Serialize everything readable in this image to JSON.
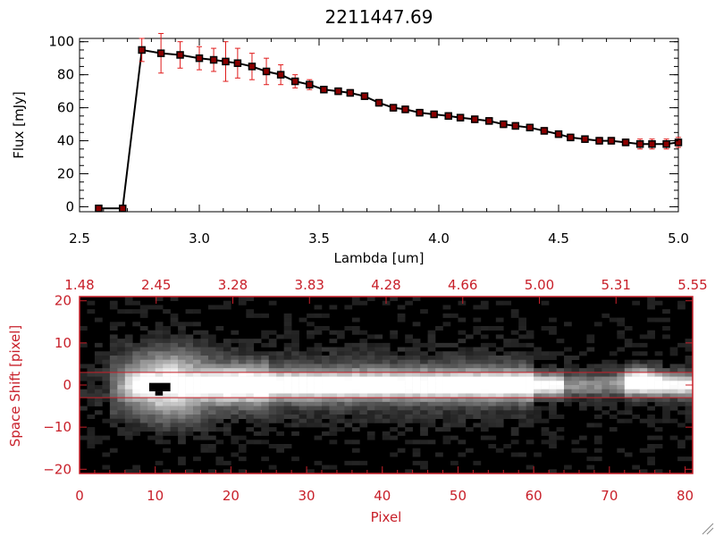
{
  "colors": {
    "line": "#000000",
    "errorbar": "#e01a1a",
    "marker": "#000000",
    "marker_fill": "#8b0000",
    "bottom_axes": "#c8202a"
  },
  "chart_data": [
    {
      "type": "line",
      "title": "2211447.69",
      "xlabel": "Lambda [um]",
      "ylabel": "Flux [mJy]",
      "xlim": [
        2.5,
        5.0
      ],
      "ylim": [
        -3,
        102
      ],
      "x_ticks": [
        2.5,
        3.0,
        3.5,
        4.0,
        4.5,
        5.0
      ],
      "x_tick_labels": [
        "2.5",
        "3.0",
        "3.5",
        "4.0",
        "4.5",
        "5.0"
      ],
      "y_ticks": [
        0,
        20,
        40,
        60,
        80,
        100
      ],
      "y_tick_labels": [
        "0",
        "20",
        "40",
        "60",
        "80",
        "100"
      ],
      "series": [
        {
          "x": [
            2.58,
            2.68,
            2.76,
            2.84,
            2.92,
            3.0,
            3.06,
            3.11,
            3.16,
            3.22,
            3.28,
            3.34,
            3.4,
            3.46,
            3.52,
            3.58,
            3.63,
            3.69,
            3.75,
            3.81,
            3.86,
            3.92,
            3.98,
            4.04,
            4.09,
            4.15,
            4.21,
            4.27,
            4.32,
            4.38,
            4.44,
            4.5,
            4.55,
            4.61,
            4.67,
            4.72,
            4.78,
            4.84,
            4.89,
            4.95,
            5.0
          ],
          "y": [
            -1,
            -1,
            95,
            93,
            92,
            90,
            89,
            88,
            87,
            85,
            82,
            80,
            76,
            74,
            71,
            70,
            69,
            67,
            63,
            60,
            59,
            57,
            56,
            55,
            54,
            53,
            52,
            50,
            49,
            48,
            46,
            44,
            42,
            41,
            40,
            40,
            39,
            38,
            38,
            38,
            39
          ],
          "yerr": [
            1,
            1,
            7,
            12,
            8,
            7,
            7,
            12,
            9,
            8,
            8,
            6,
            4,
            3,
            2,
            2,
            2,
            2,
            2,
            2,
            2,
            2,
            2,
            2,
            2,
            2,
            2,
            2,
            2,
            2,
            2,
            2,
            2,
            2,
            2,
            2,
            2,
            3,
            3,
            3,
            3
          ]
        }
      ]
    },
    {
      "type": "heatmap",
      "xlabel": "Pixel",
      "ylabel": "Space Shift [pixel]",
      "xlim": [
        0,
        81
      ],
      "ylim": [
        -21,
        21
      ],
      "x_ticks": [
        0,
        10,
        20,
        30,
        40,
        50,
        60,
        70,
        80
      ],
      "x_tick_labels": [
        "0",
        "10",
        "20",
        "30",
        "40",
        "50",
        "60",
        "70",
        "80"
      ],
      "y_ticks": [
        -20,
        -10,
        0,
        10,
        20
      ],
      "y_tick_labels": [
        "−20",
        "−10",
        "0",
        "10",
        "20"
      ],
      "top_tick_labels": [
        "1.48",
        "2.45",
        "3.28",
        "3.83",
        "4.28",
        "4.66",
        "5.00",
        "5.31",
        "5.55"
      ],
      "extraction_lines": [
        3,
        -3
      ],
      "grid": false
    }
  ]
}
